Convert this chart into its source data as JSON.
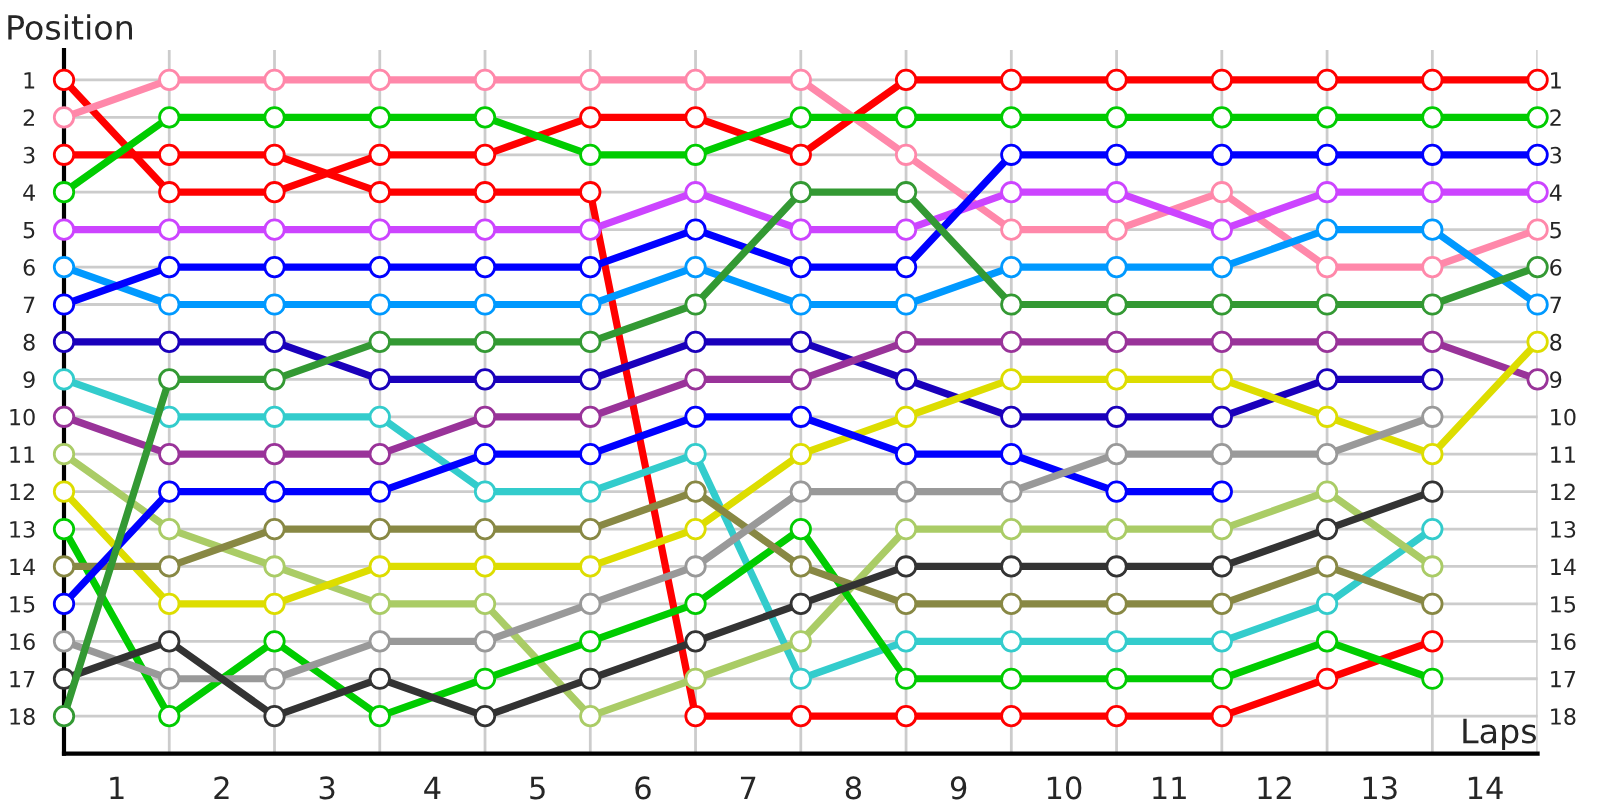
{
  "chart_data": {
    "type": "line",
    "ylabel": "Position",
    "xlabel": "Laps",
    "marker": "circle",
    "line_style": "solid",
    "grid": true,
    "legend": false,
    "x": [
      0,
      1,
      2,
      3,
      4,
      5,
      6,
      7,
      8,
      9,
      10,
      11,
      12,
      13,
      14
    ],
    "xlim": [
      0,
      14
    ],
    "xticks": [
      {
        "value": 0,
        "label": null
      },
      {
        "value": 0.5,
        "label": "1"
      },
      {
        "value": 1,
        "label": null
      },
      {
        "value": 1.5,
        "label": "2"
      },
      {
        "value": 2,
        "label": null
      },
      {
        "value": 2.5,
        "label": "3"
      },
      {
        "value": 3,
        "label": null
      },
      {
        "value": 3.5,
        "label": "4"
      },
      {
        "value": 4,
        "label": null
      },
      {
        "value": 4.5,
        "label": "5"
      },
      {
        "value": 5,
        "label": null
      },
      {
        "value": 5.5,
        "label": "6"
      },
      {
        "value": 6,
        "label": null
      },
      {
        "value": 6.5,
        "label": "7"
      },
      {
        "value": 7,
        "label": null
      },
      {
        "value": 7.5,
        "label": "8"
      },
      {
        "value": 8,
        "label": null
      },
      {
        "value": 8.5,
        "label": "9"
      },
      {
        "value": 9,
        "label": null
      },
      {
        "value": 9.5,
        "label": "10"
      },
      {
        "value": 10,
        "label": null
      },
      {
        "value": 10.5,
        "label": "11"
      },
      {
        "value": 11,
        "label": null
      },
      {
        "value": 11.5,
        "label": "12"
      },
      {
        "value": 12,
        "label": null
      },
      {
        "value": 12.5,
        "label": "13"
      },
      {
        "value": 13,
        "label": null
      },
      {
        "value": 13.5,
        "label": "14"
      },
      {
        "value": 14,
        "label": null
      }
    ],
    "ylim": [
      19,
      0.2
    ],
    "yticks": [
      1,
      2,
      3,
      4,
      5,
      6,
      7,
      8,
      9,
      10,
      11,
      12,
      13,
      14,
      15,
      16,
      17,
      18
    ],
    "y2lim": [
      19,
      0.2
    ],
    "y2ticks": [
      1,
      2,
      3,
      4,
      5,
      6,
      7,
      8,
      9,
      10,
      11,
      12,
      13,
      14,
      15,
      16,
      17,
      18
    ],
    "series": [
      {
        "color": "#ff0000",
        "values": [
          1,
          4,
          4,
          3,
          3,
          2,
          2,
          3,
          1,
          1,
          1,
          1,
          1,
          1,
          1
        ]
      },
      {
        "color": "#ff88aa",
        "values": [
          2,
          1,
          1,
          1,
          1,
          1,
          1,
          1,
          3,
          5,
          5,
          4,
          6,
          6,
          5
        ]
      },
      {
        "color": "#ff0000",
        "values": [
          3,
          3,
          3,
          4,
          4,
          4,
          18,
          18,
          18,
          18,
          18,
          18,
          17,
          16,
          null
        ]
      },
      {
        "color": "#00cc00",
        "values": [
          4,
          2,
          2,
          2,
          2,
          3,
          3,
          2,
          2,
          2,
          2,
          2,
          2,
          2,
          2
        ]
      },
      {
        "color": "#cc44ff",
        "values": [
          5,
          5,
          5,
          5,
          5,
          5,
          4,
          5,
          5,
          4,
          4,
          5,
          4,
          4,
          4
        ]
      },
      {
        "color": "#0099ff",
        "values": [
          6,
          7,
          7,
          7,
          7,
          7,
          6,
          7,
          7,
          6,
          6,
          6,
          5,
          5,
          7
        ]
      },
      {
        "color": "#0000ff",
        "values": [
          7,
          6,
          6,
          6,
          6,
          6,
          5,
          6,
          6,
          3,
          3,
          3,
          3,
          3,
          3
        ]
      },
      {
        "color": "#1a00bb",
        "values": [
          8,
          8,
          8,
          9,
          9,
          9,
          8,
          8,
          9,
          10,
          10,
          10,
          9,
          9,
          null
        ]
      },
      {
        "color": "#33cccc",
        "values": [
          9,
          10,
          10,
          10,
          12,
          12,
          11,
          17,
          16,
          16,
          16,
          16,
          15,
          13,
          null
        ]
      },
      {
        "color": "#993399",
        "values": [
          10,
          11,
          11,
          11,
          10,
          10,
          9,
          9,
          8,
          8,
          8,
          8,
          8,
          8,
          9
        ]
      },
      {
        "color": "#aacc66",
        "values": [
          11,
          13,
          14,
          15,
          15,
          18,
          17,
          16,
          13,
          13,
          13,
          13,
          12,
          14,
          null
        ]
      },
      {
        "color": "#dddd00",
        "values": [
          12,
          15,
          15,
          14,
          14,
          14,
          13,
          11,
          10,
          9,
          9,
          9,
          10,
          11,
          8
        ]
      },
      {
        "color": "#00cc00",
        "values": [
          13,
          18,
          16,
          18,
          17,
          16,
          15,
          13,
          17,
          17,
          17,
          17,
          16,
          17,
          null
        ]
      },
      {
        "color": "#888844",
        "values": [
          14,
          14,
          13,
          13,
          13,
          13,
          12,
          14,
          15,
          15,
          15,
          15,
          14,
          15,
          null
        ]
      },
      {
        "color": "#0000ff",
        "values": [
          15,
          12,
          12,
          12,
          11,
          11,
          10,
          10,
          11,
          11,
          12,
          12,
          null,
          null,
          null
        ]
      },
      {
        "color": "#999999",
        "values": [
          16,
          17,
          17,
          16,
          16,
          15,
          14,
          12,
          12,
          12,
          11,
          11,
          11,
          10,
          null
        ]
      },
      {
        "color": "#333333",
        "values": [
          17,
          16,
          18,
          17,
          18,
          17,
          16,
          15,
          14,
          14,
          14,
          14,
          13,
          12,
          null
        ]
      },
      {
        "color": "#339933",
        "values": [
          18,
          9,
          9,
          8,
          8,
          8,
          7,
          4,
          4,
          7,
          7,
          7,
          7,
          7,
          6
        ]
      }
    ]
  }
}
